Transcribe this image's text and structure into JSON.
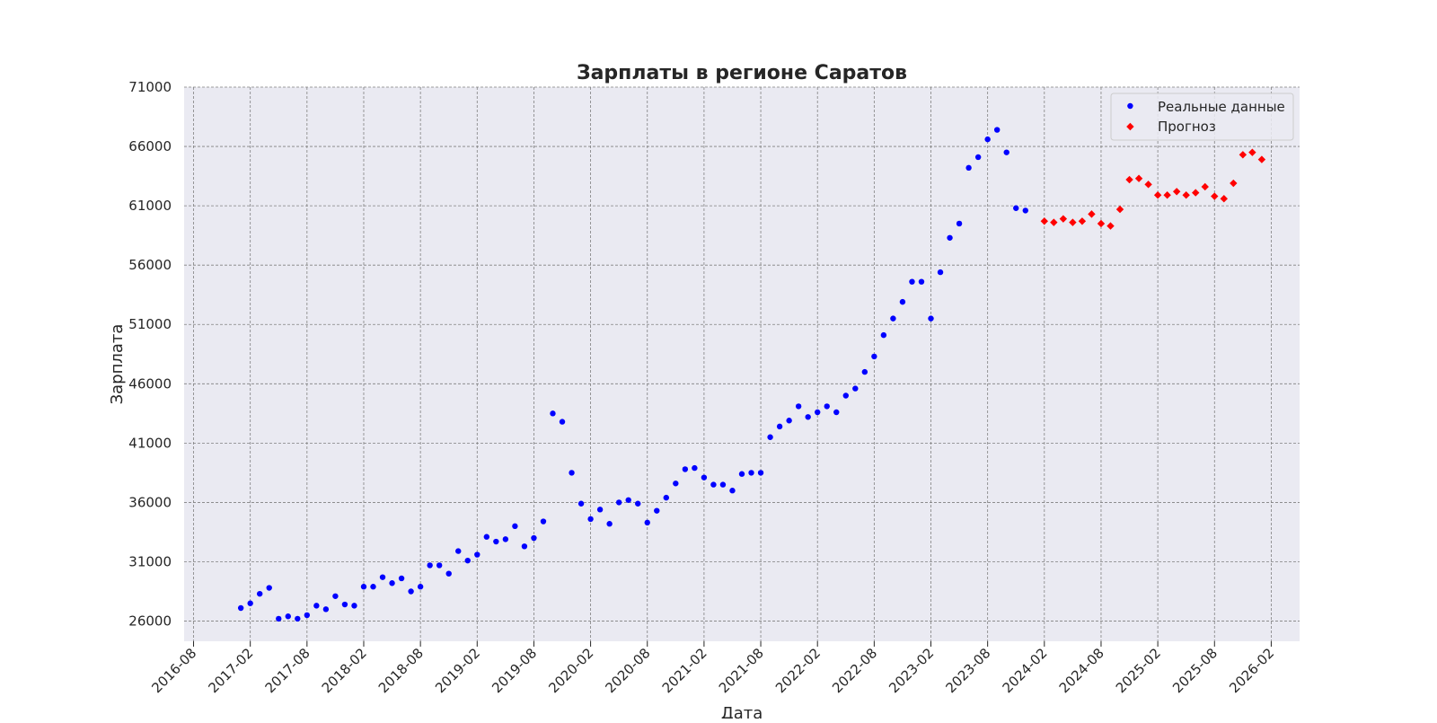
{
  "chart_data": {
    "type": "scatter",
    "title": "Зарплаты в регионе Саратов",
    "xlabel": "Дата",
    "ylabel": "Зарплата",
    "ylim": [
      24300,
      71000
    ],
    "xlim": [
      "2016-07",
      "2026-05"
    ],
    "yticks": [
      26000,
      31000,
      36000,
      41000,
      46000,
      51000,
      56000,
      61000,
      66000,
      71000
    ],
    "xticks": [
      "2016-08",
      "2017-02",
      "2017-08",
      "2018-02",
      "2018-08",
      "2019-02",
      "2019-08",
      "2020-02",
      "2020-08",
      "2021-02",
      "2021-08",
      "2022-02",
      "2022-08",
      "2023-02",
      "2023-08",
      "2024-02",
      "2024-08",
      "2025-02",
      "2025-08",
      "2026-02"
    ],
    "grid": true,
    "legend_position": "top-right",
    "colors": {
      "background": "#eaeaf2",
      "grid": "#808080",
      "actual": "#0000ff",
      "forecast": "#ff0000"
    },
    "series": [
      {
        "name": "Реальные данные",
        "marker": "circle",
        "color": "#0000ff",
        "x": [
          "2017-01",
          "2017-02",
          "2017-03",
          "2017-04",
          "2017-05",
          "2017-06",
          "2017-07",
          "2017-08",
          "2017-09",
          "2017-10",
          "2017-11",
          "2017-12",
          "2018-01",
          "2018-02",
          "2018-03",
          "2018-04",
          "2018-05",
          "2018-06",
          "2018-07",
          "2018-08",
          "2018-09",
          "2018-10",
          "2018-11",
          "2018-12",
          "2019-01",
          "2019-02",
          "2019-03",
          "2019-04",
          "2019-05",
          "2019-06",
          "2019-07",
          "2019-08",
          "2019-09",
          "2019-10",
          "2019-11",
          "2019-12",
          "2020-01",
          "2020-02",
          "2020-03",
          "2020-04",
          "2020-05",
          "2020-06",
          "2020-07",
          "2020-08",
          "2020-09",
          "2020-10",
          "2020-11",
          "2020-12",
          "2021-01",
          "2021-02",
          "2021-03",
          "2021-04",
          "2021-05",
          "2021-06",
          "2021-07",
          "2021-08",
          "2021-09",
          "2021-10",
          "2021-11",
          "2021-12",
          "2022-01",
          "2022-02",
          "2022-03",
          "2022-04",
          "2022-05",
          "2022-06",
          "2022-07",
          "2022-08",
          "2022-09",
          "2022-10",
          "2022-11",
          "2022-12",
          "2023-01",
          "2023-02",
          "2023-03",
          "2023-04",
          "2023-05",
          "2023-06",
          "2023-07",
          "2023-08",
          "2023-09",
          "2023-10",
          "2023-11",
          "2023-12"
        ],
        "y": [
          27100,
          27500,
          28300,
          28800,
          26200,
          26400,
          26200,
          26500,
          27300,
          27000,
          28100,
          27400,
          27300,
          28900,
          28900,
          29700,
          29200,
          29600,
          28500,
          28900,
          30700,
          30700,
          30000,
          31900,
          31100,
          31600,
          33100,
          32700,
          32900,
          34000,
          32300,
          33000,
          34400,
          43500,
          42800,
          38500,
          35900,
          34600,
          35400,
          34200,
          36000,
          36200,
          35900,
          34300,
          35300,
          36400,
          37600,
          38800,
          38900,
          38100,
          37500,
          37500,
          37000,
          38400,
          38500,
          38500,
          41500,
          42400,
          42900,
          44100,
          43200,
          43600,
          44100,
          43600,
          45000,
          45600,
          47000,
          48300,
          50100,
          51500,
          52900,
          54600,
          54600,
          51500,
          55400,
          58300,
          59500,
          64200,
          65100,
          66600,
          67400,
          65500,
          60800,
          60600
        ]
      },
      {
        "name": "Прогноз",
        "marker": "diamond",
        "color": "#ff0000",
        "x": [
          "2024-02",
          "2024-03",
          "2024-04",
          "2024-05",
          "2024-06",
          "2024-07",
          "2024-08",
          "2024-09",
          "2024-10",
          "2024-11",
          "2024-12",
          "2025-01",
          "2025-02",
          "2025-03",
          "2025-04",
          "2025-05",
          "2025-06",
          "2025-07",
          "2025-08",
          "2025-09",
          "2025-10",
          "2025-11",
          "2025-12",
          "2026-01"
        ],
        "y": [
          59700,
          59600,
          59900,
          59600,
          59700,
          60300,
          59500,
          59300,
          60700,
          63200,
          63300,
          62800,
          61900,
          61900,
          62200,
          61900,
          62100,
          62600,
          61800,
          61600,
          62900,
          65300,
          65500,
          64900
        ]
      }
    ]
  }
}
